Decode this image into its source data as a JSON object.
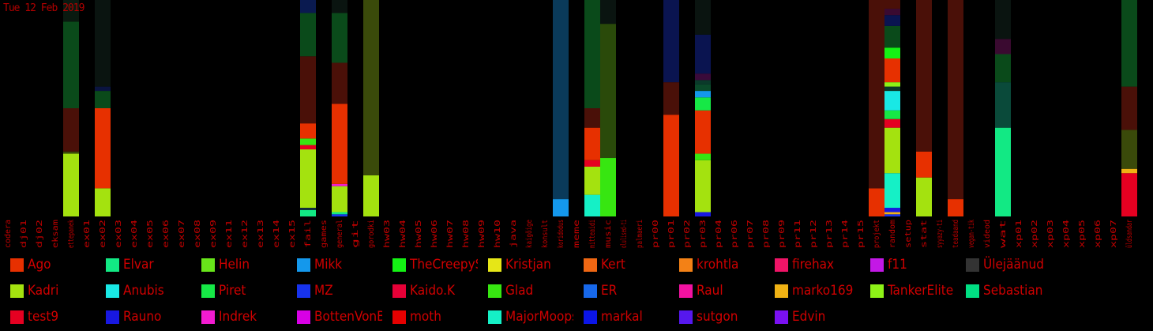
{
  "date_label": "Tue 12 Feb 2019",
  "label_color": "#c00000",
  "chart_data": {
    "type": "bar",
    "stacked": true,
    "orientation": "vertical",
    "grid": false,
    "legend_position": "bottom",
    "ylim": [
      0,
      100
    ],
    "categories": [
      "codera",
      "dj01",
      "dj02",
      "eksam",
      "ettepanek",
      "ex01",
      "ex02",
      "ex03",
      "ex04",
      "ex05",
      "ex06",
      "ex07",
      "ex08",
      "ex09",
      "ex11",
      "ex12",
      "ex13",
      "ex14",
      "ex15",
      "fail",
      "games",
      "general",
      "git",
      "gorodki",
      "hw03",
      "hw04",
      "hw05",
      "hw06",
      "hw07",
      "hw08",
      "hw09",
      "hw10",
      "java",
      "kaigõige",
      "konsult",
      "koridodus",
      "meme",
      "mitteaidi",
      "music",
      "olulised-ti",
      "palmaeri",
      "pr00",
      "pr01",
      "pr02",
      "pr03",
      "pr04",
      "pr06",
      "pr07",
      "pr08",
      "pr09",
      "pr11",
      "pr12",
      "pr13",
      "pr14",
      "pr15",
      "projekt",
      "random",
      "setup",
      "stat",
      "syyazy-ti",
      "teadaand",
      "vegan-tik",
      "videod",
      "wat",
      "xp01",
      "xp02",
      "xp03",
      "xp04",
      "xp05",
      "xp06",
      "xp07",
      "üldsandar"
    ],
    "series_colors": [
      "#e73000",
      "#a4e20f",
      "#00df83",
      "#12e984",
      "#19e8e5",
      "#e50021",
      "#68e51a",
      "#16e846",
      "#1818e2",
      "#1498ec",
      "#1733ee",
      "#f21bd0",
      "#14f214",
      "#e60037",
      "#d800e6",
      "#e6e617",
      "#37e611",
      "#e60000",
      "#ef6713",
      "#1768ea",
      "#15f0c6",
      "#f38116",
      "#f212a1",
      "#0b15e8",
      "#f01467",
      "#f0b214",
      "#5618ee",
      "#c318e6",
      "#8df217",
      "#7a10f2",
      "#333333"
    ],
    "legend": [
      {
        "label": "Ago",
        "color": "#e73000"
      },
      {
        "label": "Elvar",
        "color": "#12e984"
      },
      {
        "label": "Helin",
        "color": "#68e51a"
      },
      {
        "label": "Mikk",
        "color": "#1498ec"
      },
      {
        "label": "TheCreepySh",
        "color": "#14f214"
      },
      {
        "label": "Kristjan",
        "color": "#e6e617"
      },
      {
        "label": "Kert",
        "color": "#ef6713"
      },
      {
        "label": "krohtla",
        "color": "#f38116"
      },
      {
        "label": "firehax",
        "color": "#f01467"
      },
      {
        "label": "f11",
        "color": "#c318e6"
      },
      {
        "label": "Ülejäänud",
        "color": "#333333"
      },
      {
        "label": "Kadri",
        "color": "#a4e20f"
      },
      {
        "label": "Anubis",
        "color": "#19e8e5"
      },
      {
        "label": "Piret",
        "color": "#16e846"
      },
      {
        "label": "MZ",
        "color": "#1733ee"
      },
      {
        "label": "Kaido.K",
        "color": "#e60037"
      },
      {
        "label": "Glad",
        "color": "#37e611"
      },
      {
        "label": "ER",
        "color": "#1768ea"
      },
      {
        "label": "Raul",
        "color": "#f212a1"
      },
      {
        "label": "marko169",
        "color": "#f0b214"
      },
      {
        "label": "TankerElite",
        "color": "#8df217"
      },
      {
        "label": "Sebastian",
        "color": "#00df83"
      },
      {
        "label": "test9",
        "color": "#e50021"
      },
      {
        "label": "Rauno",
        "color": "#1818e2"
      },
      {
        "label": "Indrek",
        "color": "#f21bd0"
      },
      {
        "label": "BottenVonBot",
        "color": "#d800e6"
      },
      {
        "label": "moth",
        "color": "#e60000"
      },
      {
        "label": "MajorMoopsy",
        "color": "#15f0c6"
      },
      {
        "label": "markal",
        "color": "#0b15e8"
      },
      {
        "label": "sutgon",
        "color": "#5618ee"
      },
      {
        "label": "Edvin",
        "color": "#7a10f2"
      }
    ],
    "bars": [
      {
        "category": "ettepanek",
        "segments": [
          {
            "value": 29,
            "color": "#a4e20f"
          },
          {
            "value": 1,
            "color": "#3a4a0a"
          },
          {
            "value": 20,
            "color": "#4a1008"
          },
          {
            "value": 40,
            "color": "#0a4a1a"
          },
          {
            "value": 10,
            "color": "#0a1a10"
          }
        ]
      },
      {
        "category": "ex02",
        "segments": [
          {
            "value": 13,
            "color": "#a4e20f"
          },
          {
            "value": 37,
            "color": "#e73000"
          },
          {
            "value": 8,
            "color": "#0a4a1a"
          },
          {
            "value": 2,
            "color": "#0a1440"
          },
          {
            "value": 40,
            "color": "#0a1410"
          }
        ]
      },
      {
        "category": "fail",
        "segments": [
          {
            "value": 3,
            "color": "#12e984"
          },
          {
            "value": 1,
            "color": "#10283a"
          },
          {
            "value": 27,
            "color": "#a4e20f"
          },
          {
            "value": 2,
            "color": "#e50021"
          },
          {
            "value": 3,
            "color": "#37e611"
          },
          {
            "value": 7,
            "color": "#e73000"
          },
          {
            "value": 31,
            "color": "#4a1008"
          },
          {
            "value": 20,
            "color": "#0a4a1a"
          },
          {
            "value": 6,
            "color": "#0a1a50"
          }
        ]
      },
      {
        "category": "general",
        "segments": [
          {
            "value": 1,
            "color": "#1733ee"
          },
          {
            "value": 1,
            "color": "#12e984"
          },
          {
            "value": 12,
            "color": "#a4e20f"
          },
          {
            "value": 1,
            "color": "#f21bd0"
          },
          {
            "value": 37,
            "color": "#e73000"
          },
          {
            "value": 19,
            "color": "#4a1008"
          },
          {
            "value": 23,
            "color": "#0a4a1a"
          },
          {
            "value": 6,
            "color": "#0a1410"
          }
        ]
      },
      {
        "category": "gorodki",
        "segments": [
          {
            "value": 19,
            "color": "#a4e20f"
          },
          {
            "value": 81,
            "color": "#3a4a0a"
          }
        ]
      },
      {
        "category": "koridodus",
        "segments": [
          {
            "value": 8,
            "color": "#1498ec"
          },
          {
            "value": 92,
            "color": "#0a3a5a"
          }
        ]
      },
      {
        "category": "mitteaidi",
        "segments": [
          {
            "value": 10,
            "color": "#15f0c6"
          },
          {
            "value": 13,
            "color": "#a4e20f"
          },
          {
            "value": 3,
            "color": "#e50021"
          },
          {
            "value": 15,
            "color": "#e73000"
          },
          {
            "value": 9,
            "color": "#4a1008"
          },
          {
            "value": 50,
            "color": "#0a4a1a"
          }
        ]
      },
      {
        "category": "music",
        "segments": [
          {
            "value": 27,
            "color": "#37e611"
          },
          {
            "value": 62,
            "color": "#2a4a0a"
          },
          {
            "value": 11,
            "color": "#0a1410"
          }
        ]
      },
      {
        "category": "pr01",
        "segments": [
          {
            "value": 47,
            "color": "#e73000"
          },
          {
            "value": 15,
            "color": "#4a1008"
          },
          {
            "value": 38,
            "color": "#0a1450"
          }
        ]
      },
      {
        "category": "pr03",
        "segments": [
          {
            "value": 2,
            "color": "#1818e2"
          },
          {
            "value": 24,
            "color": "#a4e20f"
          },
          {
            "value": 3,
            "color": "#37e611"
          },
          {
            "value": 20,
            "color": "#e73000"
          },
          {
            "value": 6,
            "color": "#16e846"
          },
          {
            "value": 3,
            "color": "#1498ec"
          },
          {
            "value": 3,
            "color": "#0a4a2a"
          },
          {
            "value": 2,
            "color": "#0a3a2a"
          },
          {
            "value": 3,
            "color": "#3a0a3a"
          },
          {
            "value": 18,
            "color": "#0a1450"
          },
          {
            "value": 16,
            "color": "#0a1410"
          }
        ]
      },
      {
        "category": "projekt",
        "segments": [
          {
            "value": 13,
            "color": "#e73000"
          },
          {
            "value": 87,
            "color": "#4a1008"
          }
        ]
      },
      {
        "category": "random",
        "segments": [
          {
            "value": 1,
            "color": "#1733ee"
          },
          {
            "value": 1,
            "color": "#f0b214"
          },
          {
            "value": 2,
            "color": "#1818e2"
          },
          {
            "value": 16,
            "color": "#15f0c6"
          },
          {
            "value": 21,
            "color": "#a4e20f"
          },
          {
            "value": 4,
            "color": "#e50021"
          },
          {
            "value": 4,
            "color": "#16e846"
          },
          {
            "value": 9,
            "color": "#19e8e5"
          },
          {
            "value": 2,
            "color": "#0a3a2a"
          },
          {
            "value": 2,
            "color": "#8df217"
          },
          {
            "value": 11,
            "color": "#e73000"
          },
          {
            "value": 5,
            "color": "#14f214"
          },
          {
            "value": 10,
            "color": "#0a4a1a"
          },
          {
            "value": 5,
            "color": "#0a1450"
          },
          {
            "value": 3,
            "color": "#3a0a30"
          },
          {
            "value": 4,
            "color": "#4a1008"
          }
        ]
      },
      {
        "category": "stat",
        "segments": [
          {
            "value": 18,
            "color": "#a4e20f"
          },
          {
            "value": 12,
            "color": "#e73000"
          },
          {
            "value": 70,
            "color": "#4a1008"
          }
        ]
      },
      {
        "category": "teadaand",
        "segments": [
          {
            "value": 8,
            "color": "#e73000"
          },
          {
            "value": 92,
            "color": "#4a1008"
          }
        ]
      },
      {
        "category": "wat",
        "segments": [
          {
            "value": 41,
            "color": "#12e984"
          },
          {
            "value": 21,
            "color": "#0a4a3a"
          },
          {
            "value": 13,
            "color": "#0a4a1a"
          },
          {
            "value": 7,
            "color": "#3a0a30"
          },
          {
            "value": 18,
            "color": "#0a1410"
          }
        ]
      },
      {
        "category": "üldsandar",
        "segments": [
          {
            "value": 20,
            "color": "#e50021"
          },
          {
            "value": 2,
            "color": "#f0b214"
          },
          {
            "value": 18,
            "color": "#3a4a0a"
          },
          {
            "value": 20,
            "color": "#4a1008"
          },
          {
            "value": 40,
            "color": "#0a4a1a"
          }
        ]
      }
    ]
  }
}
